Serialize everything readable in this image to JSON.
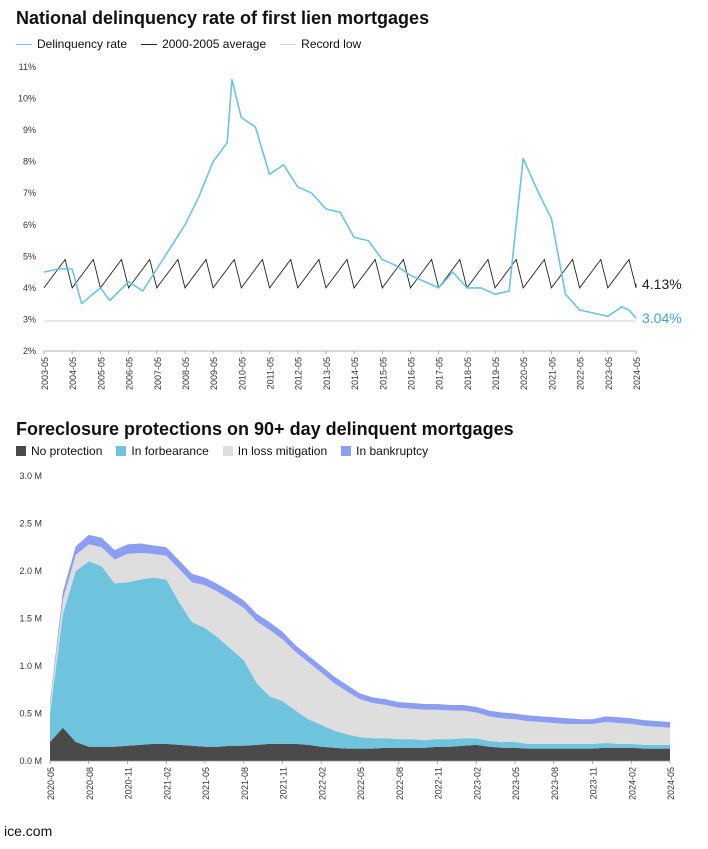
{
  "source": "ice.com",
  "chart_data": [
    {
      "type": "line",
      "title": "National delinquency rate of first lien mortgages",
      "x_start": "2003-05",
      "x_end": "2024-05",
      "xlabel": "",
      "ylabel": "",
      "ylim": [
        2,
        11
      ],
      "y_ticks": [
        "2%",
        "3%",
        "4%",
        "5%",
        "6%",
        "7%",
        "8%",
        "9%",
        "10%",
        "11%"
      ],
      "x_ticks": [
        "2003-05",
        "2004-05",
        "2005-05",
        "2006-05",
        "2007-05",
        "2008-05",
        "2009-05",
        "2010-05",
        "2011-05",
        "2012-05",
        "2013-05",
        "2014-05",
        "2015-05",
        "2016-05",
        "2017-05",
        "2018-05",
        "2019-05",
        "2020-05",
        "2021-05",
        "2022-05",
        "2023-05",
        "2024-05"
      ],
      "grid": false,
      "legend": "top-left",
      "colors": {
        "delinquency": "#6ec3dd",
        "average": "#222222",
        "record_low": "#cfcfcf"
      },
      "series": [
        {
          "name": "Delinquency rate",
          "points": [
            [
              "2003-05",
              4.5
            ],
            [
              "2003-11",
              4.6
            ],
            [
              "2004-05",
              4.6
            ],
            [
              "2004-09",
              3.5
            ],
            [
              "2005-05",
              4.0
            ],
            [
              "2005-09",
              3.6
            ],
            [
              "2006-05",
              4.2
            ],
            [
              "2006-11",
              3.9
            ],
            [
              "2007-05",
              4.6
            ],
            [
              "2007-11",
              5.3
            ],
            [
              "2008-05",
              6.0
            ],
            [
              "2008-11",
              6.9
            ],
            [
              "2009-05",
              8.0
            ],
            [
              "2009-11",
              8.6
            ],
            [
              "2010-01",
              10.6
            ],
            [
              "2010-05",
              9.4
            ],
            [
              "2010-11",
              9.1
            ],
            [
              "2011-05",
              7.6
            ],
            [
              "2011-11",
              7.9
            ],
            [
              "2012-05",
              7.2
            ],
            [
              "2012-11",
              7.0
            ],
            [
              "2013-05",
              6.5
            ],
            [
              "2013-11",
              6.4
            ],
            [
              "2014-05",
              5.6
            ],
            [
              "2014-11",
              5.5
            ],
            [
              "2015-05",
              4.9
            ],
            [
              "2015-11",
              4.7
            ],
            [
              "2016-05",
              4.4
            ],
            [
              "2016-11",
              4.2
            ],
            [
              "2017-05",
              4.0
            ],
            [
              "2017-11",
              4.5
            ],
            [
              "2018-05",
              4.0
            ],
            [
              "2018-11",
              4.0
            ],
            [
              "2019-05",
              3.8
            ],
            [
              "2019-11",
              3.9
            ],
            [
              "2020-05",
              8.1
            ],
            [
              "2020-11",
              7.1
            ],
            [
              "2021-05",
              6.2
            ],
            [
              "2021-11",
              3.8
            ],
            [
              "2022-05",
              3.3
            ],
            [
              "2022-11",
              3.2
            ],
            [
              "2023-05",
              3.1
            ],
            [
              "2023-11",
              3.4
            ],
            [
              "2024-02",
              3.3
            ],
            [
              "2024-05",
              3.04
            ]
          ],
          "end_label": "3.04%"
        },
        {
          "name": "2000-2005 average",
          "seasonal": true,
          "min": 4.0,
          "max": 4.9,
          "end_value": 4.13,
          "end_label": "4.13%"
        },
        {
          "name": "Record low",
          "value": 2.95
        }
      ]
    },
    {
      "type": "area",
      "title": "Foreclosure protections on 90+ day delinquent mortgages",
      "stacked": true,
      "xlabel": "",
      "ylabel": "",
      "ylim": [
        0,
        3.0
      ],
      "y_ticks": [
        "0.0 M",
        "0.5 M",
        "1.0 M",
        "1.5 M",
        "2.0 M",
        "2.5 M",
        "3.0 M"
      ],
      "x_ticks": [
        "2020-05",
        "2020-08",
        "2020-11",
        "2021-02",
        "2021-05",
        "2021-08",
        "2021-11",
        "2022-02",
        "2022-05",
        "2022-08",
        "2022-11",
        "2023-02",
        "2023-05",
        "2023-08",
        "2023-11",
        "2024-02",
        "2024-05"
      ],
      "grid": false,
      "legend": "top-left",
      "months": [
        "2020-05",
        "2020-06",
        "2020-07",
        "2020-08",
        "2020-09",
        "2020-10",
        "2020-11",
        "2020-12",
        "2021-01",
        "2021-02",
        "2021-03",
        "2021-04",
        "2021-05",
        "2021-06",
        "2021-07",
        "2021-08",
        "2021-09",
        "2021-10",
        "2021-11",
        "2021-12",
        "2022-01",
        "2022-02",
        "2022-03",
        "2022-04",
        "2022-05",
        "2022-06",
        "2022-07",
        "2022-08",
        "2022-09",
        "2022-10",
        "2022-11",
        "2022-12",
        "2023-01",
        "2023-02",
        "2023-03",
        "2023-04",
        "2023-05",
        "2023-06",
        "2023-07",
        "2023-08",
        "2023-09",
        "2023-10",
        "2023-11",
        "2023-12",
        "2024-01",
        "2024-02",
        "2024-03",
        "2024-04",
        "2024-05"
      ],
      "series": [
        {
          "name": "No protection",
          "color": "#4a4a4a",
          "values": [
            0.2,
            0.35,
            0.2,
            0.15,
            0.15,
            0.15,
            0.16,
            0.17,
            0.18,
            0.18,
            0.17,
            0.16,
            0.15,
            0.15,
            0.16,
            0.16,
            0.17,
            0.18,
            0.18,
            0.18,
            0.17,
            0.15,
            0.14,
            0.13,
            0.13,
            0.13,
            0.14,
            0.14,
            0.14,
            0.14,
            0.15,
            0.15,
            0.16,
            0.17,
            0.15,
            0.14,
            0.14,
            0.13,
            0.13,
            0.13,
            0.13,
            0.13,
            0.13,
            0.14,
            0.14,
            0.14,
            0.13,
            0.13,
            0.13
          ]
        },
        {
          "name": "In forbearance",
          "color": "#6ec3dd",
          "values": [
            0.3,
            1.2,
            1.8,
            1.95,
            1.9,
            1.72,
            1.72,
            1.74,
            1.75,
            1.73,
            1.5,
            1.3,
            1.25,
            1.15,
            1.02,
            0.9,
            0.65,
            0.5,
            0.45,
            0.35,
            0.27,
            0.23,
            0.18,
            0.15,
            0.12,
            0.11,
            0.1,
            0.09,
            0.09,
            0.08,
            0.08,
            0.08,
            0.08,
            0.07,
            0.06,
            0.06,
            0.06,
            0.05,
            0.05,
            0.05,
            0.05,
            0.05,
            0.05,
            0.05,
            0.04,
            0.04,
            0.04,
            0.04,
            0.04
          ]
        },
        {
          "name": "In loss mitigation",
          "color": "#dedede",
          "values": [
            0.08,
            0.15,
            0.17,
            0.18,
            0.2,
            0.25,
            0.3,
            0.28,
            0.25,
            0.25,
            0.35,
            0.42,
            0.45,
            0.48,
            0.52,
            0.55,
            0.65,
            0.7,
            0.65,
            0.62,
            0.6,
            0.55,
            0.5,
            0.45,
            0.4,
            0.37,
            0.35,
            0.33,
            0.32,
            0.32,
            0.31,
            0.3,
            0.29,
            0.27,
            0.26,
            0.25,
            0.24,
            0.24,
            0.23,
            0.22,
            0.21,
            0.21,
            0.21,
            0.22,
            0.22,
            0.21,
            0.2,
            0.19,
            0.18
          ]
        },
        {
          "name": "In bankruptcy",
          "color": "#8c9ef2",
          "values": [
            0.04,
            0.08,
            0.09,
            0.1,
            0.1,
            0.1,
            0.1,
            0.1,
            0.09,
            0.09,
            0.09,
            0.09,
            0.08,
            0.08,
            0.08,
            0.08,
            0.08,
            0.08,
            0.08,
            0.07,
            0.07,
            0.07,
            0.07,
            0.07,
            0.06,
            0.06,
            0.06,
            0.06,
            0.06,
            0.06,
            0.06,
            0.06,
            0.06,
            0.06,
            0.06,
            0.06,
            0.06,
            0.06,
            0.06,
            0.06,
            0.06,
            0.05,
            0.05,
            0.06,
            0.06,
            0.06,
            0.06,
            0.06,
            0.06
          ]
        }
      ]
    }
  ]
}
